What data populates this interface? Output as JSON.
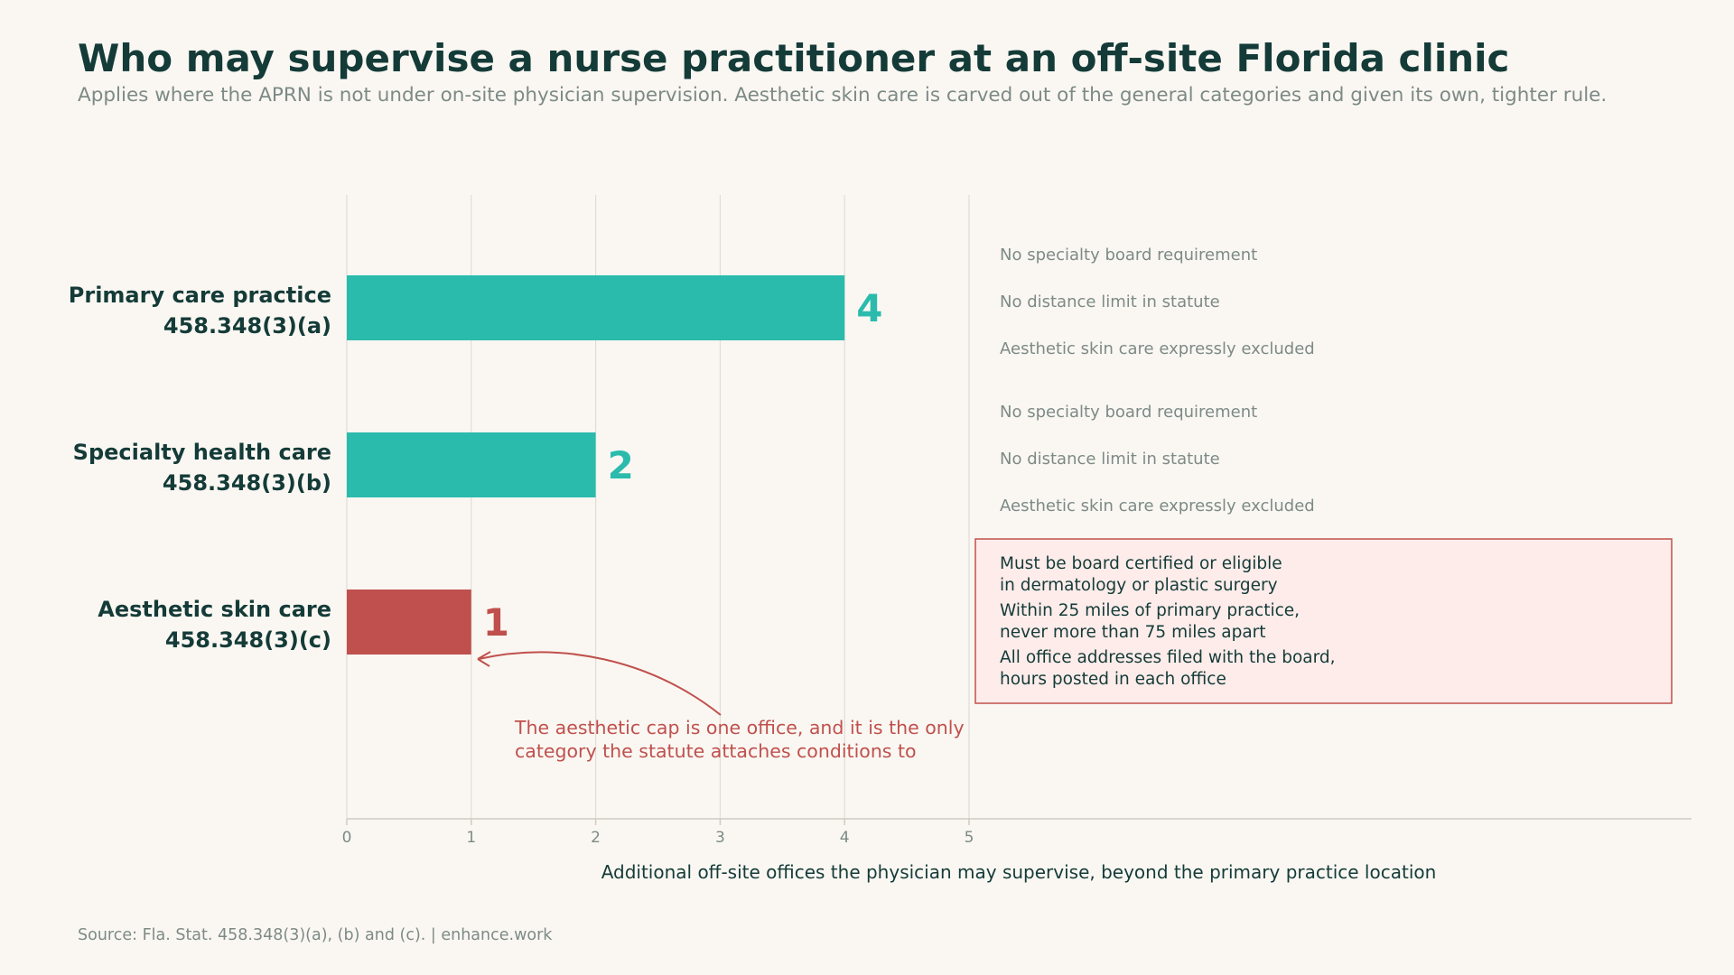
{
  "title": "Who may supervise a nurse practitioner at an off-site Florida clinic",
  "subtitle": "Applies where the APRN is not under on-site physician supervision. Aesthetic skin care is carved out of the general categories and given its own, tighter rule.",
  "source": "Source: Fla. Stat. 458.348(3)(a), (b) and (c).  |  enhance.work",
  "colors": {
    "teal": "#2bbbad",
    "red": "#c0504d",
    "text": "#143b38",
    "muted": "#7d8a86",
    "grid": "#e0ddd6",
    "box_fill": "#fdecea",
    "box_border": "#c0504d"
  },
  "chart_data": {
    "type": "bar",
    "orientation": "horizontal",
    "categories": [
      {
        "name": "Primary care practice",
        "ref": "458.348(3)(a)"
      },
      {
        "name": "Specialty health care",
        "ref": "458.348(3)(b)"
      },
      {
        "name": "Aesthetic skin care",
        "ref": "458.348(3)(c)"
      }
    ],
    "values": [
      4,
      2,
      1
    ],
    "value_labels": [
      "4",
      "2",
      "1"
    ],
    "bar_colors": [
      "#2bbbad",
      "#2bbbad",
      "#c0504d"
    ],
    "xlabel": "Additional off-site offices the physician may supervise, beyond the primary practice location",
    "xlim": [
      0,
      5
    ],
    "xticks": [
      "0",
      "1",
      "2",
      "3",
      "4",
      "5"
    ],
    "grid": "vertical",
    "notes": [
      [
        "No specialty board requirement",
        "No distance limit in statute",
        "Aesthetic skin care expressly excluded"
      ],
      [
        "No specialty board requirement",
        "No distance limit in statute",
        "Aesthetic skin care expressly excluded"
      ]
    ],
    "conditions": [
      [
        "Must be board certified or eligible",
        "in dermatology or plastic surgery"
      ],
      [
        "Within 25 miles of primary practice,",
        "never more than 75 miles apart"
      ],
      [
        "All office addresses filed with the board,",
        "hours posted in each office"
      ]
    ],
    "annotation": [
      "The aesthetic cap is one office, and it is the only",
      "category the statute attaches conditions to"
    ]
  }
}
